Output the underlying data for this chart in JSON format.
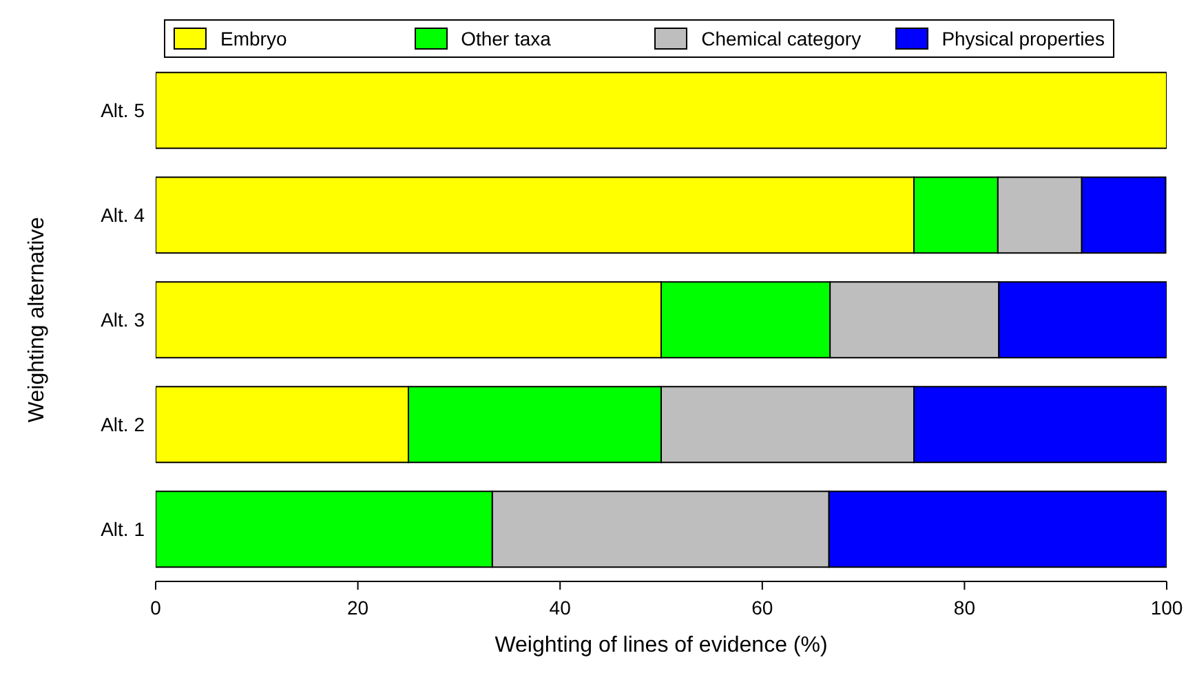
{
  "chart_data": {
    "type": "bar",
    "orientation": "horizontal",
    "stacked": true,
    "xlabel": "Weighting of lines of evidence (%)",
    "ylabel": "Weighting alternative",
    "categories": [
      "Alt. 5",
      "Alt. 4",
      "Alt. 3",
      "Alt. 2",
      "Alt. 1"
    ],
    "series": [
      {
        "name": "Embryo",
        "color": "#ffff00",
        "values": [
          100,
          75,
          50,
          25,
          0
        ]
      },
      {
        "name": "Other taxa",
        "color": "#00ff00",
        "values": [
          0,
          8.3,
          16.7,
          25,
          33.3
        ]
      },
      {
        "name": "Chemical category",
        "color": "#bebebe",
        "values": [
          0,
          8.3,
          16.7,
          25,
          33.3
        ]
      },
      {
        "name": "Physical properties",
        "color": "#0000ff",
        "values": [
          0,
          8.3,
          16.7,
          25,
          33.4
        ]
      }
    ],
    "xlim": [
      0,
      100
    ],
    "xticks": [
      0,
      20,
      40,
      60,
      80,
      100
    ],
    "grid": false,
    "legend": "top"
  }
}
